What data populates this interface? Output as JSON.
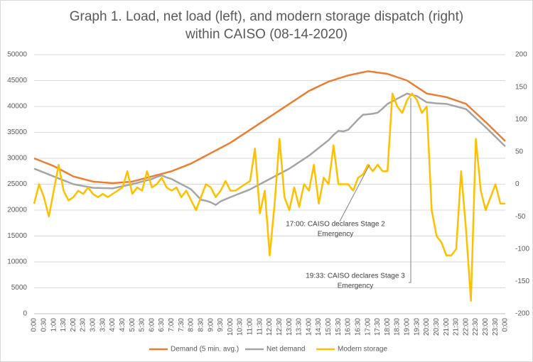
{
  "chart_data": {
    "type": "line",
    "title": [
      "Graph 1. Load, net load (left), and modern storage dispatch (right)",
      "within CAISO (08-14-2020)"
    ],
    "categories": [
      "0:00",
      null,
      "0:30",
      null,
      "1:00",
      null,
      "1:30",
      null,
      "2:00",
      null,
      "2:30",
      null,
      "3:00",
      null,
      "3:30",
      null,
      "4:00",
      null,
      "4:30",
      null,
      "5:00",
      null,
      "5:30",
      null,
      "6:00",
      null,
      "6:30",
      null,
      "7:00",
      null,
      "7:30",
      null,
      "8:00",
      null,
      "8:30",
      null,
      "9:00",
      null,
      "9:30",
      null,
      "10:00",
      null,
      "10:30",
      null,
      "11:00",
      null,
      "11:30",
      null,
      "12:00",
      null,
      "12:30",
      null,
      "13:00",
      null,
      "13:30",
      null,
      "14:00",
      null,
      "14:30",
      null,
      "15:00",
      null,
      "15:30",
      null,
      "16:00",
      null,
      "16:30",
      null,
      "17:00",
      null,
      "17:30",
      null,
      "18:00",
      null,
      "18:30",
      null,
      "19:00",
      null,
      "19:30",
      null,
      "20:00",
      null,
      "20:30",
      null,
      "21:00",
      null,
      "21:30",
      null,
      "22:00",
      null,
      "22:30",
      null,
      "23:00",
      null,
      "23:30",
      null,
      "0:00"
    ],
    "series": [
      {
        "name": "Demand (5 min. avg.)",
        "color": "#ed7d31",
        "values": [
          30000,
          29625,
          29250,
          28875,
          28500,
          28000,
          27500,
          27000,
          26500,
          26250,
          26000,
          25750,
          25500,
          25425,
          25350,
          25275,
          25200,
          25275,
          25350,
          25425,
          25500,
          25750,
          26000,
          26250,
          26500,
          26750,
          27000,
          27250,
          27500,
          27875,
          28250,
          28625,
          29000,
          29500,
          30000,
          30500,
          31000,
          31500,
          32000,
          32500,
          33000,
          33625,
          34250,
          34875,
          35500,
          36125,
          36750,
          37375,
          38000,
          38625,
          39250,
          39875,
          40500,
          41125,
          41750,
          42375,
          43000,
          43450,
          43900,
          44350,
          44800,
          45100,
          45400,
          45700,
          46000,
          46200,
          46400,
          46600,
          46800,
          46675,
          46550,
          46425,
          46300,
          45975,
          45650,
          45325,
          45000,
          44375,
          43750,
          43125,
          42500,
          42325,
          42150,
          41975,
          41800,
          41475,
          41150,
          40825,
          40500,
          39625,
          38750,
          37875,
          37000,
          36075,
          35150,
          34225,
          33300
        ]
      },
      {
        "name": "Net demand",
        "color": "#a5a5a5",
        "values": [
          28000,
          27625,
          27250,
          26875,
          26500,
          26125,
          25750,
          25375,
          25000,
          24825,
          24650,
          24475,
          24300,
          24275,
          24250,
          24225,
          24200,
          24400,
          24600,
          24800,
          25000,
          25250,
          25500,
          25750,
          26000,
          26400,
          26700,
          26300,
          26000,
          25500,
          25000,
          24500,
          24000,
          23000,
          22000,
          21800,
          21500,
          21000,
          21700,
          22100,
          22500,
          22875,
          23250,
          23625,
          24000,
          24500,
          25000,
          25500,
          26000,
          26500,
          27000,
          27500,
          28000,
          28625,
          29250,
          29875,
          30500,
          31250,
          32000,
          32750,
          33500,
          34500,
          35300,
          35200,
          35500,
          36500,
          37500,
          38400,
          38500,
          38600,
          38800,
          39600,
          40500,
          41000,
          41500,
          42000,
          42500,
          42200,
          42000,
          41400,
          40800,
          40700,
          40600,
          40550,
          40500,
          40250,
          40000,
          39750,
          39500,
          38625,
          37750,
          36875,
          36000,
          35075,
          34150,
          33225,
          32300
        ]
      },
      {
        "name": "Modern storage",
        "color": "#ffc000",
        "axis": "y2",
        "values": [
          -30,
          0,
          -20,
          -50,
          -10,
          30,
          -10,
          -25,
          -20,
          -10,
          -15,
          -5,
          -15,
          -20,
          -15,
          -20,
          -15,
          -10,
          -5,
          20,
          -15,
          -5,
          -10,
          20,
          -5,
          0,
          10,
          -5,
          -10,
          -5,
          -20,
          -10,
          -25,
          -40,
          -20,
          0,
          -5,
          -20,
          -10,
          5,
          -10,
          -10,
          -5,
          0,
          5,
          55,
          -45,
          -10,
          -110,
          -30,
          70,
          -20,
          -40,
          -5,
          -35,
          0,
          -10,
          30,
          -30,
          10,
          0,
          60,
          0,
          0,
          0,
          -10,
          10,
          15,
          30,
          20,
          30,
          20,
          20,
          140,
          120,
          110,
          130,
          140,
          130,
          110,
          120,
          -40,
          -80,
          -90,
          -110,
          -110,
          -100,
          20,
          -70,
          -180,
          70,
          -10,
          -40,
          -20,
          0,
          -30,
          -30
        ]
      }
    ],
    "ylim": [
      0,
      50000
    ],
    "yticks": [
      0,
      5000,
      10000,
      15000,
      20000,
      25000,
      30000,
      35000,
      40000,
      45000,
      50000
    ],
    "y2lim": [
      -200,
      200
    ],
    "y2ticks": [
      -200,
      -150,
      -100,
      -50,
      0,
      50,
      100,
      150,
      200
    ],
    "grid": true,
    "legend": "bottom",
    "annotations": [
      [
        "17:00: CAISO declares Stage 2",
        "Emergency"
      ],
      [
        "19:33: CAISO declares Stage 3",
        "Emergency"
      ]
    ]
  }
}
